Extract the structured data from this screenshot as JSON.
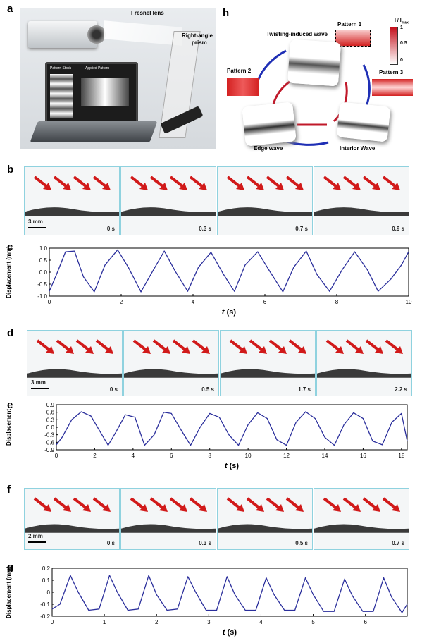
{
  "panels": {
    "a": {
      "label": "a",
      "fresnel": "Fresnel lens",
      "prism_line1": "Right-angle",
      "prism_line2": "prism",
      "pattern_stock": "Pattern Stock",
      "applied_pattern": "Applied Pattern"
    },
    "h": {
      "label": "h",
      "pattern1": "Pattern 1",
      "pattern2": "Pattern 2",
      "pattern3": "Pattern 3",
      "twisting": "Twisting-induced wave",
      "edge": "Edge wave",
      "interior": "Interior Wave",
      "cbar_title": "I / I",
      "cbar_sub": "max",
      "cbar_ticks": [
        "1",
        "0.5",
        "0"
      ]
    },
    "b": {
      "label": "b",
      "scale": "3 mm",
      "times": [
        "0 s",
        "0.3 s",
        "0.7 s",
        "0.9 s"
      ]
    },
    "d": {
      "label": "d",
      "scale": "3 mm",
      "times": [
        "0 s",
        "0.5 s",
        "1.7 s",
        "2.2 s"
      ]
    },
    "f": {
      "label": "f",
      "scale": "2 mm",
      "times": [
        "0 s",
        "0.3 s",
        "0.5 s",
        "0.7 s"
      ]
    },
    "c": {
      "label": "c"
    },
    "e": {
      "label": "e"
    },
    "g": {
      "label": "g"
    }
  },
  "colors": {
    "curve": "#2b2f9c",
    "arrow": "#d11a1a",
    "frame": "#8fd2df",
    "arrow_blue": "#1f2fb5",
    "arrow_red": "#c0192a"
  },
  "chart_data": [
    {
      "id": "c",
      "type": "line",
      "ylabel": "Displacement (mm)",
      "xlabel": "t (s)",
      "xlim": [
        0,
        10
      ],
      "ylim": [
        -1.0,
        1.0
      ],
      "xticks": [
        "0",
        "2",
        "4",
        "6",
        "8",
        "10"
      ],
      "yticks": [
        "1.0",
        "0.5",
        "0.0",
        "-0.5",
        "-1.0"
      ],
      "x": [
        0,
        0.2,
        0.45,
        0.7,
        0.95,
        1.25,
        1.55,
        1.9,
        2.2,
        2.55,
        2.9,
        3.2,
        3.5,
        3.85,
        4.15,
        4.5,
        4.85,
        5.15,
        5.45,
        5.8,
        6.15,
        6.5,
        6.8,
        7.15,
        7.45,
        7.8,
        8.15,
        8.5,
        8.85,
        9.15,
        9.5,
        9.8,
        10
      ],
      "y": [
        -0.8,
        -0.1,
        0.85,
        0.88,
        -0.2,
        -0.82,
        0.3,
        0.93,
        0.2,
        -0.82,
        0.1,
        0.88,
        0.05,
        -0.8,
        0.2,
        0.83,
        -0.1,
        -0.8,
        0.3,
        0.85,
        0.0,
        -0.82,
        0.2,
        0.88,
        -0.1,
        -0.8,
        0.1,
        0.85,
        0.1,
        -0.8,
        -0.3,
        0.3,
        0.85
      ]
    },
    {
      "id": "e",
      "type": "line",
      "ylabel": "Displacement",
      "xlabel": "t (s)",
      "xlim": [
        0,
        18.3
      ],
      "ylim": [
        -0.9,
        0.9
      ],
      "xticks": [
        "0",
        "2",
        "4",
        "6",
        "8",
        "10",
        "12",
        "14",
        "16",
        "18"
      ],
      "yticks": [
        "0.9",
        "0.6",
        "0.3",
        "0.0",
        "-0.3",
        "-0.6",
        "-0.9"
      ],
      "x": [
        0,
        0.3,
        0.8,
        1.3,
        1.8,
        2.3,
        2.7,
        3.1,
        3.6,
        4.1,
        4.6,
        5.1,
        5.6,
        6.0,
        6.5,
        7.0,
        7.5,
        8.0,
        8.5,
        9.0,
        9.5,
        10.0,
        10.5,
        11.0,
        11.5,
        12.0,
        12.5,
        13.0,
        13.5,
        14.0,
        14.5,
        15.0,
        15.5,
        16.0,
        16.5,
        17.0,
        17.5,
        18.0,
        18.3
      ],
      "y": [
        -0.7,
        -0.4,
        0.3,
        0.62,
        0.45,
        -0.2,
        -0.72,
        -0.2,
        0.5,
        0.4,
        -0.72,
        -0.3,
        0.6,
        0.55,
        -0.1,
        -0.72,
        0.0,
        0.55,
        0.4,
        -0.3,
        -0.72,
        0.1,
        0.58,
        0.35,
        -0.5,
        -0.72,
        0.2,
        0.62,
        0.35,
        -0.4,
        -0.72,
        0.1,
        0.58,
        0.35,
        -0.55,
        -0.7,
        0.2,
        0.55,
        -0.55
      ]
    },
    {
      "id": "g",
      "type": "line",
      "ylabel": "Displacement (mm)",
      "xlabel": "t (s)",
      "xlim": [
        0,
        6.8
      ],
      "ylim": [
        -0.2,
        0.2
      ],
      "xticks": [
        "0",
        "1",
        "2",
        "3",
        "4",
        "5",
        "6"
      ],
      "yticks": [
        "0.2",
        "0.1",
        "0",
        "-0.1",
        "-0.2"
      ],
      "x": [
        0,
        0.15,
        0.35,
        0.5,
        0.7,
        0.9,
        1.1,
        1.25,
        1.45,
        1.65,
        1.85,
        2.0,
        2.2,
        2.4,
        2.6,
        2.75,
        2.95,
        3.15,
        3.35,
        3.5,
        3.7,
        3.9,
        4.1,
        4.25,
        4.45,
        4.65,
        4.85,
        5.0,
        5.2,
        5.4,
        5.6,
        5.75,
        5.95,
        6.15,
        6.35,
        6.5,
        6.7,
        6.8
      ],
      "y": [
        -0.14,
        -0.1,
        0.14,
        0.0,
        -0.15,
        -0.14,
        0.14,
        0.0,
        -0.15,
        -0.14,
        0.14,
        -0.02,
        -0.15,
        -0.14,
        0.13,
        0.0,
        -0.15,
        -0.15,
        0.13,
        -0.02,
        -0.15,
        -0.15,
        0.12,
        -0.02,
        -0.15,
        -0.15,
        0.12,
        -0.02,
        -0.16,
        -0.16,
        0.11,
        -0.03,
        -0.16,
        -0.16,
        0.12,
        -0.04,
        -0.17,
        -0.1
      ]
    }
  ]
}
